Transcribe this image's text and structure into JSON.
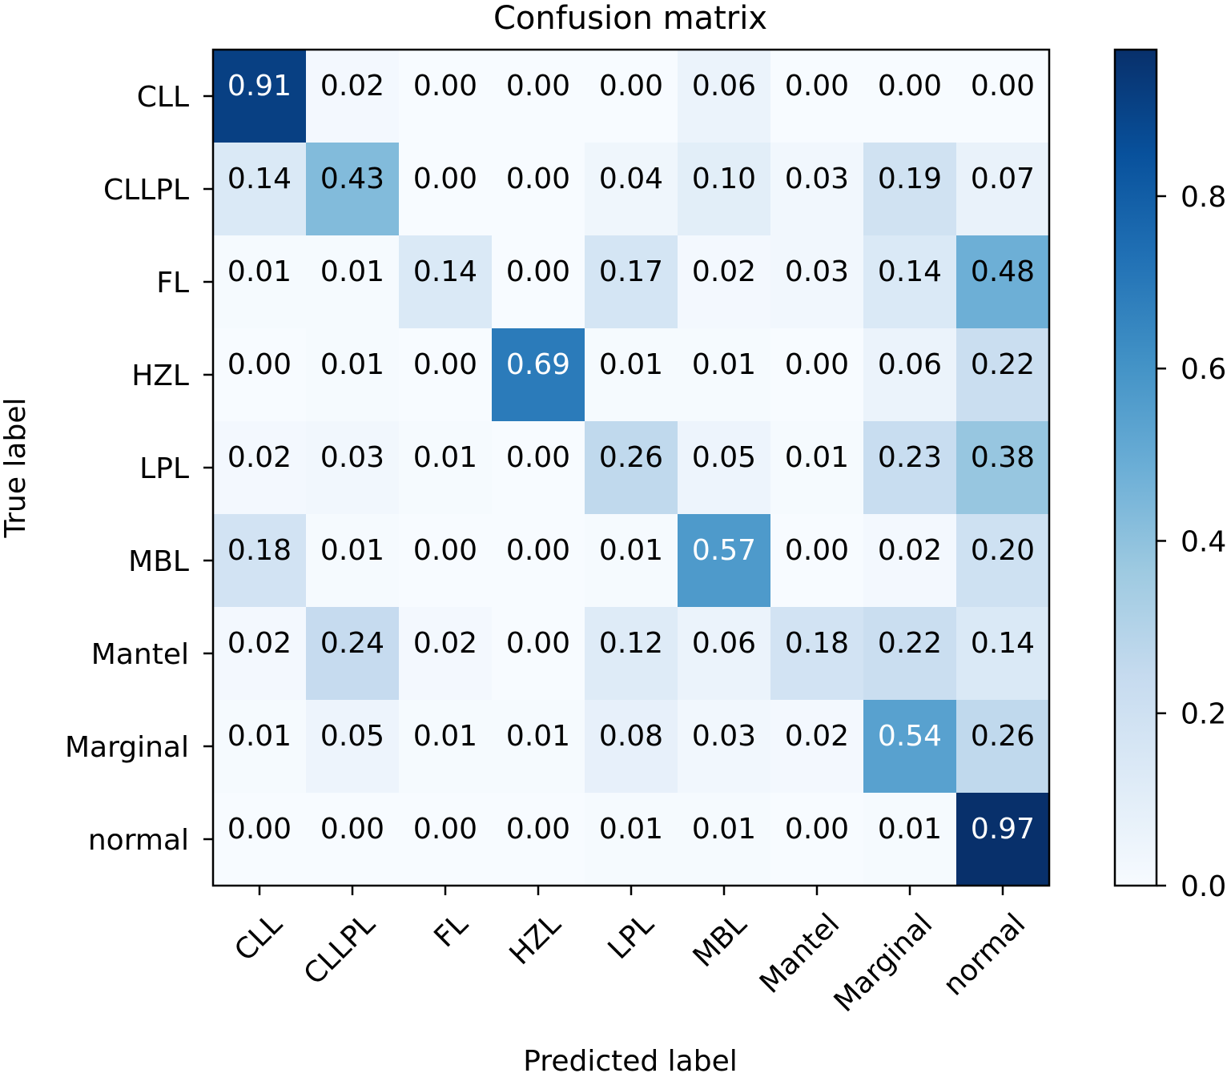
{
  "chart_data": {
    "type": "heatmap",
    "title": "Confusion matrix",
    "xlabel": "Predicted label",
    "ylabel": "True label",
    "x_categories": [
      "CLL",
      "CLLPL",
      "FL",
      "HZL",
      "LPL",
      "MBL",
      "Mantel",
      "Marginal",
      "normal"
    ],
    "y_categories": [
      "CLL",
      "CLLPL",
      "FL",
      "HZL",
      "LPL",
      "MBL",
      "Mantel",
      "Marginal",
      "normal"
    ],
    "values": [
      [
        0.91,
        0.02,
        0.0,
        0.0,
        0.0,
        0.06,
        0.0,
        0.0,
        0.0
      ],
      [
        0.14,
        0.43,
        0.0,
        0.0,
        0.04,
        0.1,
        0.03,
        0.19,
        0.07
      ],
      [
        0.01,
        0.01,
        0.14,
        0.0,
        0.17,
        0.02,
        0.03,
        0.14,
        0.48
      ],
      [
        0.0,
        0.01,
        0.0,
        0.69,
        0.01,
        0.01,
        0.0,
        0.06,
        0.22
      ],
      [
        0.02,
        0.03,
        0.01,
        0.0,
        0.26,
        0.05,
        0.01,
        0.23,
        0.38
      ],
      [
        0.18,
        0.01,
        0.0,
        0.0,
        0.01,
        0.57,
        0.0,
        0.02,
        0.2
      ],
      [
        0.02,
        0.24,
        0.02,
        0.0,
        0.12,
        0.06,
        0.18,
        0.22,
        0.14
      ],
      [
        0.01,
        0.05,
        0.01,
        0.01,
        0.08,
        0.03,
        0.02,
        0.54,
        0.26
      ],
      [
        0.0,
        0.0,
        0.0,
        0.0,
        0.01,
        0.01,
        0.0,
        0.01,
        0.97
      ]
    ],
    "value_labels": [
      [
        "0.91",
        "0.02",
        "0.00",
        "0.00",
        "0.00",
        "0.06",
        "0.00",
        "0.00",
        "0.00"
      ],
      [
        "0.14",
        "0.43",
        "0.00",
        "0.00",
        "0.04",
        "0.10",
        "0.03",
        "0.19",
        "0.07"
      ],
      [
        "0.01",
        "0.01",
        "0.14",
        "0.00",
        "0.17",
        "0.02",
        "0.03",
        "0.14",
        "0.48"
      ],
      [
        "0.00",
        "0.01",
        "0.00",
        "0.69",
        "0.01",
        "0.01",
        "0.00",
        "0.06",
        "0.22"
      ],
      [
        "0.02",
        "0.03",
        "0.01",
        "0.00",
        "0.26",
        "0.05",
        "0.01",
        "0.23",
        "0.38"
      ],
      [
        "0.18",
        "0.01",
        "0.00",
        "0.00",
        "0.01",
        "0.57",
        "0.00",
        "0.02",
        "0.20"
      ],
      [
        "0.02",
        "0.24",
        "0.02",
        "0.00",
        "0.12",
        "0.06",
        "0.18",
        "0.22",
        "0.14"
      ],
      [
        "0.01",
        "0.05",
        "0.01",
        "0.01",
        "0.08",
        "0.03",
        "0.02",
        "0.54",
        "0.26"
      ],
      [
        "0.00",
        "0.00",
        "0.00",
        "0.00",
        "0.01",
        "0.01",
        "0.00",
        "0.01",
        "0.97"
      ]
    ],
    "colormap": "Blues",
    "colormap_stops": [
      "#f7fbff",
      "#deebf7",
      "#c6dbef",
      "#9ecae1",
      "#6baed6",
      "#4292c6",
      "#2171b5",
      "#08519c",
      "#08306b"
    ],
    "color_range": [
      0,
      0.97
    ],
    "colorbar_ticks": [
      "0.0",
      "0.2",
      "0.4",
      "0.6",
      "0.8"
    ],
    "colorbar_tick_values": [
      0.0,
      0.2,
      0.4,
      0.6,
      0.8
    ],
    "text_threshold": 0.485,
    "text_color_light": "#ffffff",
    "text_color_dark": "#000000",
    "grid": false
  }
}
